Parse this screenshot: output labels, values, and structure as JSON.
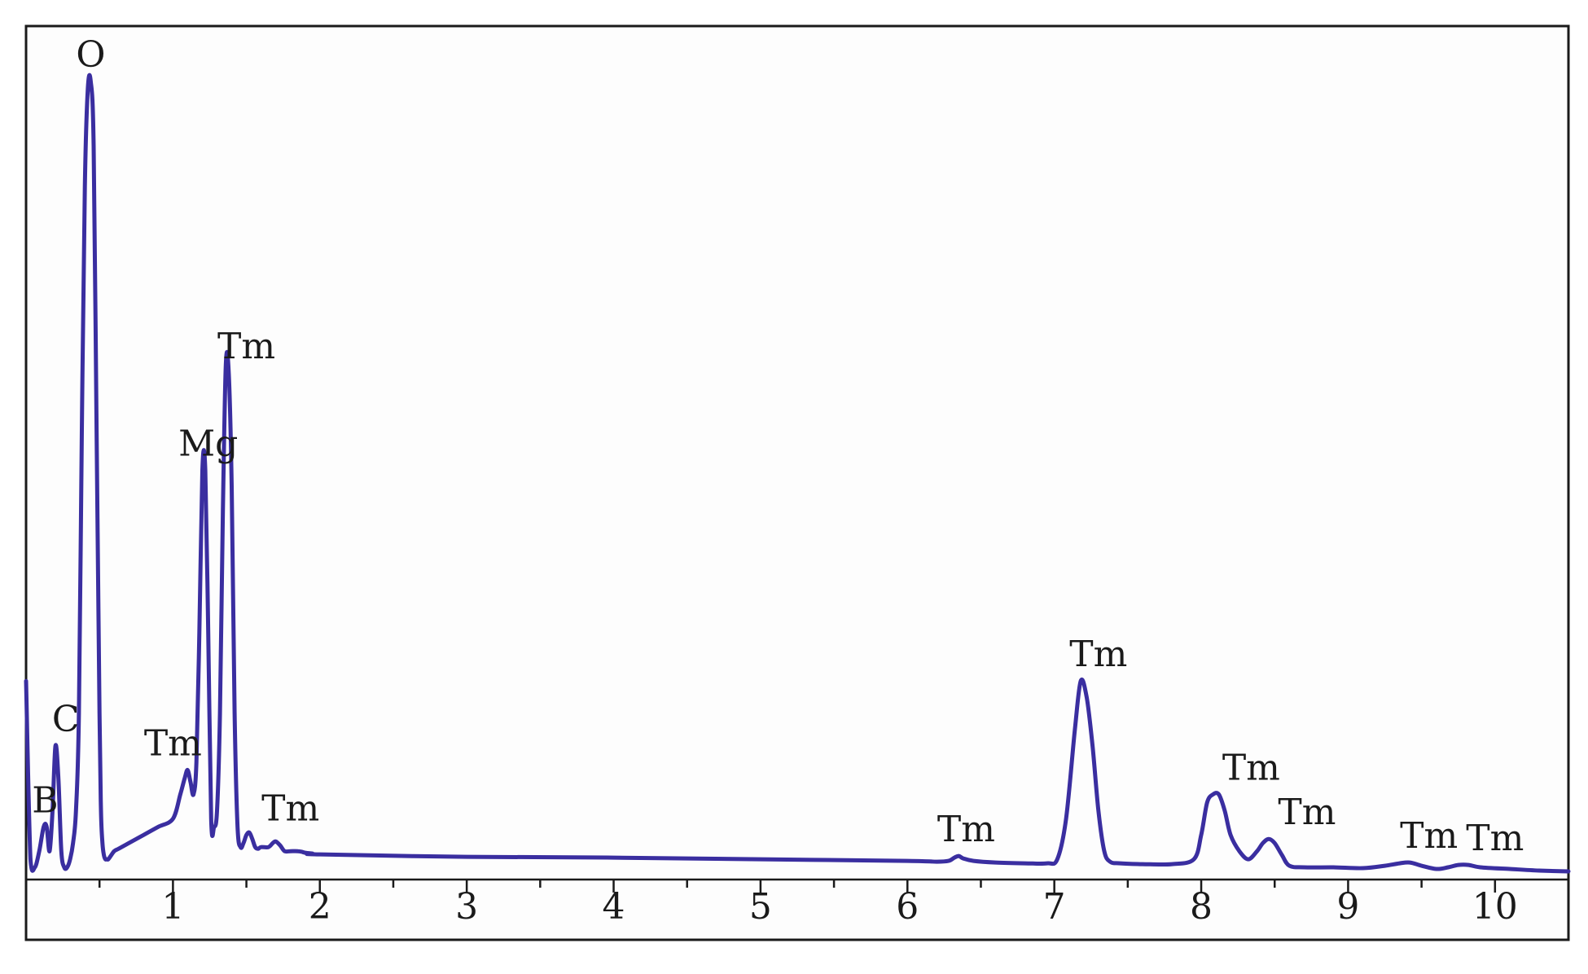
{
  "chart_data": {
    "type": "line",
    "title": "",
    "xlabel": "",
    "ylabel": "",
    "xlim": [
      0,
      10.5
    ],
    "ylim": [
      0,
      1.0
    ],
    "grid": false,
    "legend": "none",
    "line_color": "#3a2ea0",
    "x_ticks": [
      1,
      2,
      3,
      4,
      5,
      6,
      7,
      8,
      9,
      10
    ],
    "x_tick_labels": [
      "1",
      "2",
      "3",
      "4",
      "5",
      "6",
      "7",
      "8",
      "9",
      "10"
    ],
    "series": [
      {
        "x": [
          0.0,
          0.03,
          0.06,
          0.09,
          0.12,
          0.14,
          0.16,
          0.18,
          0.2,
          0.22,
          0.24,
          0.26,
          0.28,
          0.3,
          0.32,
          0.34,
          0.36,
          0.38,
          0.4,
          0.42,
          0.44,
          0.46,
          0.48,
          0.5,
          0.51,
          0.52,
          0.53,
          0.54,
          0.55,
          0.56,
          0.58,
          0.6,
          0.63,
          0.7,
          0.8,
          0.9,
          1.0,
          1.05,
          1.08,
          1.1,
          1.12,
          1.14,
          1.16,
          1.18,
          1.2,
          1.22,
          1.24,
          1.26,
          1.28,
          1.3,
          1.32,
          1.34,
          1.36,
          1.38,
          1.4,
          1.42,
          1.44,
          1.46,
          1.48,
          1.5,
          1.52,
          1.54,
          1.56,
          1.58,
          1.6,
          1.65,
          1.68,
          1.7,
          1.73,
          1.76,
          1.8,
          1.85,
          1.88,
          1.9,
          1.95,
          2.0,
          3.0,
          4.0,
          5.0,
          6.0,
          6.2,
          6.28,
          6.32,
          6.35,
          6.38,
          6.45,
          6.6,
          6.8,
          6.95,
          7.02,
          7.08,
          7.14,
          7.18,
          7.22,
          7.26,
          7.3,
          7.34,
          7.38,
          7.45,
          7.6,
          7.8,
          7.95,
          8.0,
          8.04,
          8.08,
          8.12,
          8.16,
          8.2,
          8.26,
          8.32,
          8.38,
          8.42,
          8.46,
          8.5,
          8.55,
          8.6,
          8.7,
          8.9,
          9.1,
          9.25,
          9.35,
          9.42,
          9.5,
          9.6,
          9.68,
          9.75,
          9.82,
          9.9,
          10.1,
          10.3,
          10.5
        ],
        "y": [
          0.24,
          0.02,
          0.01,
          0.03,
          0.06,
          0.06,
          0.03,
          0.08,
          0.16,
          0.12,
          0.03,
          0.01,
          0.01,
          0.02,
          0.04,
          0.08,
          0.2,
          0.55,
          0.85,
          0.97,
          0.98,
          0.9,
          0.55,
          0.2,
          0.08,
          0.04,
          0.025,
          0.02,
          0.02,
          0.02,
          0.025,
          0.03,
          0.033,
          0.04,
          0.05,
          0.06,
          0.07,
          0.1,
          0.12,
          0.13,
          0.115,
          0.1,
          0.14,
          0.3,
          0.5,
          0.5,
          0.3,
          0.07,
          0.06,
          0.08,
          0.2,
          0.45,
          0.63,
          0.62,
          0.48,
          0.2,
          0.06,
          0.035,
          0.04,
          0.05,
          0.053,
          0.045,
          0.035,
          0.033,
          0.035,
          0.035,
          0.04,
          0.042,
          0.037,
          0.03,
          0.03,
          0.03,
          0.029,
          0.028,
          0.027,
          0.026,
          0.023,
          0.022,
          0.02,
          0.018,
          0.017,
          0.018,
          0.022,
          0.024,
          0.021,
          0.018,
          0.016,
          0.015,
          0.015,
          0.02,
          0.07,
          0.18,
          0.24,
          0.22,
          0.16,
          0.08,
          0.03,
          0.017,
          0.015,
          0.014,
          0.014,
          0.02,
          0.05,
          0.09,
          0.1,
          0.1,
          0.08,
          0.05,
          0.03,
          0.02,
          0.03,
          0.04,
          0.045,
          0.04,
          0.025,
          0.012,
          0.01,
          0.01,
          0.009,
          0.012,
          0.015,
          0.016,
          0.012,
          0.008,
          0.01,
          0.013,
          0.013,
          0.01,
          0.008,
          0.006,
          0.005
        ]
      }
    ],
    "annotations": [
      {
        "text": "O",
        "x": 0.44,
        "y": 0.98
      },
      {
        "text": "B",
        "x": 0.13,
        "y": 0.06
      },
      {
        "text": "C",
        "x": 0.27,
        "y": 0.16
      },
      {
        "text": "Tm",
        "x": 1.0,
        "y": 0.13
      },
      {
        "text": "Mg",
        "x": 1.24,
        "y": 0.5
      },
      {
        "text": "Tm",
        "x": 1.5,
        "y": 0.62
      },
      {
        "text": "Tm",
        "x": 1.8,
        "y": 0.05
      },
      {
        "text": "Tm",
        "x": 6.4,
        "y": 0.024
      },
      {
        "text": "Tm",
        "x": 7.3,
        "y": 0.24
      },
      {
        "text": "Tm",
        "x": 8.34,
        "y": 0.1
      },
      {
        "text": "Tm",
        "x": 8.72,
        "y": 0.045
      },
      {
        "text": "Tm",
        "x": 9.55,
        "y": 0.016
      },
      {
        "text": "Tm",
        "x": 10.0,
        "y": 0.013
      }
    ]
  }
}
